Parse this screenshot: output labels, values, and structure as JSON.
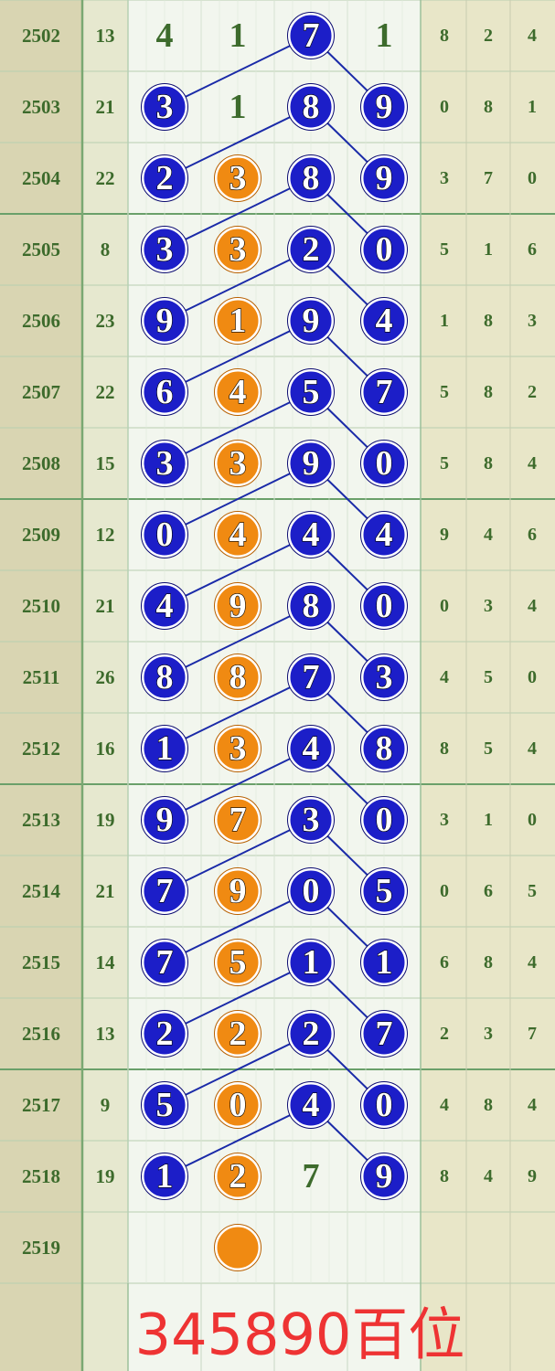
{
  "rows": [
    {
      "period": "2502",
      "sum": "13",
      "cells": [
        {
          "text": "4",
          "style": "plain"
        },
        {
          "text": "1",
          "style": "plain"
        },
        {
          "text": "7",
          "style": "blue"
        },
        {
          "text": "1",
          "style": "plain"
        }
      ],
      "tail": [
        "8",
        "2",
        "4"
      ]
    },
    {
      "period": "2503",
      "sum": "21",
      "cells": [
        {
          "text": "3",
          "style": "blue"
        },
        {
          "text": "1",
          "style": "plain"
        },
        {
          "text": "8",
          "style": "blue"
        },
        {
          "text": "9",
          "style": "blue"
        }
      ],
      "tail": [
        "0",
        "8",
        "1"
      ]
    },
    {
      "period": "2504",
      "sum": "22",
      "cells": [
        {
          "text": "2",
          "style": "blue"
        },
        {
          "text": "3",
          "style": "orange"
        },
        {
          "text": "8",
          "style": "blue"
        },
        {
          "text": "9",
          "style": "blue"
        }
      ],
      "tail": [
        "3",
        "7",
        "0"
      ]
    },
    {
      "period": "2505",
      "sum": "8",
      "cells": [
        {
          "text": "3",
          "style": "blue"
        },
        {
          "text": "3",
          "style": "orange"
        },
        {
          "text": "2",
          "style": "blue"
        },
        {
          "text": "0",
          "style": "blue"
        }
      ],
      "tail": [
        "5",
        "1",
        "6"
      ]
    },
    {
      "period": "2506",
      "sum": "23",
      "cells": [
        {
          "text": "9",
          "style": "blue"
        },
        {
          "text": "1",
          "style": "orange"
        },
        {
          "text": "9",
          "style": "blue"
        },
        {
          "text": "4",
          "style": "blue"
        }
      ],
      "tail": [
        "1",
        "8",
        "3"
      ]
    },
    {
      "period": "2507",
      "sum": "22",
      "cells": [
        {
          "text": "6",
          "style": "blue"
        },
        {
          "text": "4",
          "style": "orange"
        },
        {
          "text": "5",
          "style": "blue"
        },
        {
          "text": "7",
          "style": "blue"
        }
      ],
      "tail": [
        "5",
        "8",
        "2"
      ]
    },
    {
      "period": "2508",
      "sum": "15",
      "cells": [
        {
          "text": "3",
          "style": "blue"
        },
        {
          "text": "3",
          "style": "orange"
        },
        {
          "text": "9",
          "style": "blue"
        },
        {
          "text": "0",
          "style": "blue"
        }
      ],
      "tail": [
        "5",
        "8",
        "4"
      ]
    },
    {
      "period": "2509",
      "sum": "12",
      "cells": [
        {
          "text": "0",
          "style": "blue"
        },
        {
          "text": "4",
          "style": "orange"
        },
        {
          "text": "4",
          "style": "blue"
        },
        {
          "text": "4",
          "style": "blue"
        }
      ],
      "tail": [
        "9",
        "4",
        "6"
      ]
    },
    {
      "period": "2510",
      "sum": "21",
      "cells": [
        {
          "text": "4",
          "style": "blue"
        },
        {
          "text": "9",
          "style": "orange"
        },
        {
          "text": "8",
          "style": "blue"
        },
        {
          "text": "0",
          "style": "blue"
        }
      ],
      "tail": [
        "0",
        "3",
        "4"
      ]
    },
    {
      "period": "2511",
      "sum": "26",
      "cells": [
        {
          "text": "8",
          "style": "blue"
        },
        {
          "text": "8",
          "style": "orange"
        },
        {
          "text": "7",
          "style": "blue"
        },
        {
          "text": "3",
          "style": "blue"
        }
      ],
      "tail": [
        "4",
        "5",
        "0"
      ]
    },
    {
      "period": "2512",
      "sum": "16",
      "cells": [
        {
          "text": "1",
          "style": "blue"
        },
        {
          "text": "3",
          "style": "orange"
        },
        {
          "text": "4",
          "style": "blue"
        },
        {
          "text": "8",
          "style": "blue"
        }
      ],
      "tail": [
        "8",
        "5",
        "4"
      ]
    },
    {
      "period": "2513",
      "sum": "19",
      "cells": [
        {
          "text": "9",
          "style": "blue"
        },
        {
          "text": "7",
          "style": "orange"
        },
        {
          "text": "3",
          "style": "blue"
        },
        {
          "text": "0",
          "style": "blue"
        }
      ],
      "tail": [
        "3",
        "1",
        "0"
      ]
    },
    {
      "period": "2514",
      "sum": "21",
      "cells": [
        {
          "text": "7",
          "style": "blue"
        },
        {
          "text": "9",
          "style": "orange"
        },
        {
          "text": "0",
          "style": "blue"
        },
        {
          "text": "5",
          "style": "blue"
        }
      ],
      "tail": [
        "0",
        "6",
        "5"
      ]
    },
    {
      "period": "2515",
      "sum": "14",
      "cells": [
        {
          "text": "7",
          "style": "blue"
        },
        {
          "text": "5",
          "style": "orange"
        },
        {
          "text": "1",
          "style": "blue"
        },
        {
          "text": "1",
          "style": "blue"
        }
      ],
      "tail": [
        "6",
        "8",
        "4"
      ]
    },
    {
      "period": "2516",
      "sum": "13",
      "cells": [
        {
          "text": "2",
          "style": "blue"
        },
        {
          "text": "2",
          "style": "orange"
        },
        {
          "text": "2",
          "style": "blue"
        },
        {
          "text": "7",
          "style": "blue"
        }
      ],
      "tail": [
        "2",
        "3",
        "7"
      ]
    },
    {
      "period": "2517",
      "sum": "9",
      "cells": [
        {
          "text": "5",
          "style": "blue"
        },
        {
          "text": "0",
          "style": "orange"
        },
        {
          "text": "4",
          "style": "blue"
        },
        {
          "text": "0",
          "style": "blue"
        }
      ],
      "tail": [
        "4",
        "8",
        "4"
      ]
    },
    {
      "period": "2518",
      "sum": "19",
      "cells": [
        {
          "text": "1",
          "style": "blue"
        },
        {
          "text": "2",
          "style": "orange"
        },
        {
          "text": "7",
          "style": "plain"
        },
        {
          "text": "9",
          "style": "blue"
        }
      ],
      "tail": [
        "8",
        "4",
        "9"
      ]
    },
    {
      "period": "2519",
      "cells": [
        null,
        {
          "style": "orange"
        },
        null,
        null
      ]
    }
  ],
  "caption": "345890百位"
}
